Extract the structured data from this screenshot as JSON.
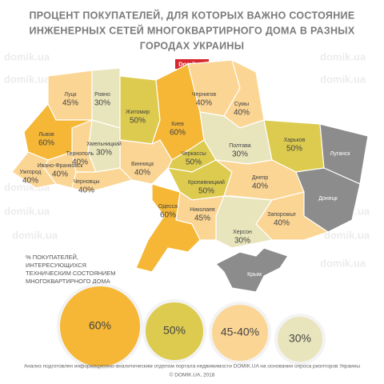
{
  "header": {
    "title_lines": [
      "ПРОЦЕНТ ПОКУПАТЕЛЕЙ, ДЛЯ КОТОРЫХ ВАЖНО СОСТОЯНИЕ",
      "ИНЖЕНЕРНЫХ СЕТЕЙ МНОГОКВАРТИРНОГО ДОМА В РАЗНЫХ",
      "ГОРОДАХ УКРАИНЫ"
    ],
    "badge": "Domik.ua"
  },
  "watermark": "domik.ua",
  "regions": [
    {
      "name": "Луцк",
      "value": "45%",
      "color": "#fbd594"
    },
    {
      "name": "Ровно",
      "value": "30%",
      "color": "#e8e5bc"
    },
    {
      "name": "Житомир",
      "value": "50%",
      "color": "#dccb4e"
    },
    {
      "name": "Киев",
      "value": "60%",
      "color": "#f5b735"
    },
    {
      "name": "Чернигов",
      "value": "40%",
      "color": "#fbd594"
    },
    {
      "name": "Сумы",
      "value": "40%",
      "color": "#fbd594"
    },
    {
      "name": "Полтава",
      "value": "30%",
      "color": "#e8e5bc"
    },
    {
      "name": "Харьков",
      "value": "50%",
      "color": "#dccb4e"
    },
    {
      "name": "Луганск",
      "value": null,
      "color": "#8c8c8c"
    },
    {
      "name": "Донецк",
      "value": null,
      "color": "#8c8c8c"
    },
    {
      "name": "Черкассы",
      "value": "50%",
      "color": "#dccb4e"
    },
    {
      "name": "Кропивницкий",
      "value": "50%",
      "color": "#dccb4e"
    },
    {
      "name": "Днепр",
      "value": "40%",
      "color": "#fbd594"
    },
    {
      "name": "Запорожье",
      "value": "40%",
      "color": "#fbd594"
    },
    {
      "name": "Херсон",
      "value": "30%",
      "color": "#e8e5bc"
    },
    {
      "name": "Николаев",
      "value": "45%",
      "color": "#fbd594"
    },
    {
      "name": "Одесса",
      "value": "60%",
      "color": "#f5b735"
    },
    {
      "name": "Винница",
      "value": "40%",
      "color": "#fbd594"
    },
    {
      "name": "Хмельницкий",
      "value": "30%",
      "color": "#e8e5bc"
    },
    {
      "name": "Тернополь",
      "value": "40%",
      "color": "#fbd594"
    },
    {
      "name": "Львов",
      "value": "60%",
      "color": "#f5b735"
    },
    {
      "name": "Ивано-Франковск",
      "value": "40%",
      "color": "#fbd594"
    },
    {
      "name": "Ужгород",
      "value": "40%",
      "color": "#fbd594"
    },
    {
      "name": "Черновцы",
      "value": "40%",
      "color": "#fbd594"
    },
    {
      "name": "Крым",
      "value": null,
      "color": "#8c8c8c"
    }
  ],
  "legend": {
    "title_lines": [
      "% ПОКУПАТЕЛЕЙ,",
      "ИНТЕРЕСУЮЩИХСЯ",
      "ТЕХНИЧЕСКИМ СОСТОЯНИЕМ",
      "МНОГОКВАРТИРНОГО ДОМА"
    ],
    "items": [
      {
        "label": "60%",
        "color": "#f5b735"
      },
      {
        "label": "50%",
        "color": "#dccb4e"
      },
      {
        "label": "45-40%",
        "color": "#fbd594"
      },
      {
        "label": "30%",
        "color": "#e8e5bc"
      }
    ]
  },
  "footer": {
    "lines": [
      "Анализ подготовлен информационно-аналитическим отделом портала недвижимости DOMIK.UA на основании опроса риэлторов Украины",
      "© DOMIK.UA, 2018"
    ]
  }
}
